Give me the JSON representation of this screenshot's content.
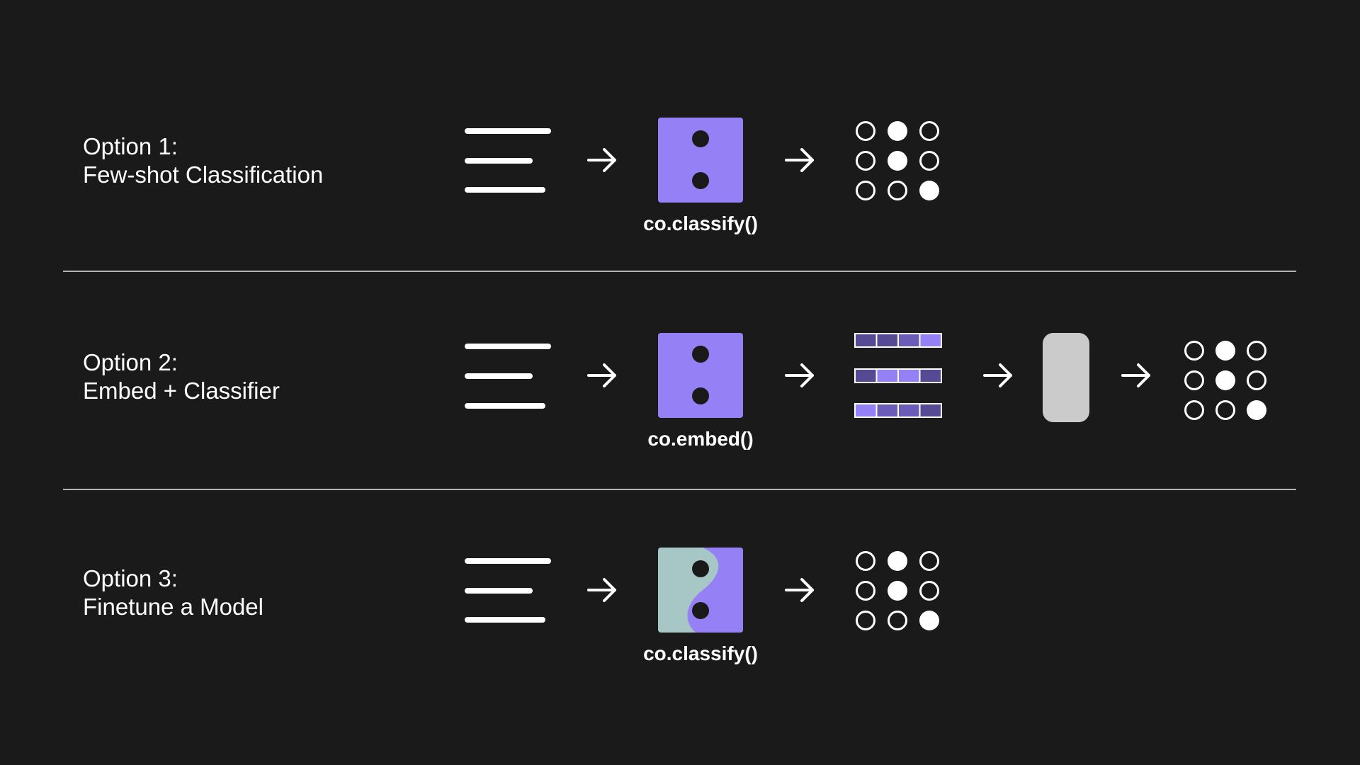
{
  "colors": {
    "background": "#1a1a1a",
    "foreground": "#ffffff",
    "model_purple": "#9580f5",
    "finetune_teal": "#a7c6c6",
    "embed_dark": "#574a94",
    "embed_mid": "#6b5cb8",
    "embed_light": "#9580f5",
    "classifier_gray": "#cbcbcb",
    "divider": "#e6e6e6"
  },
  "rows": [
    {
      "title_line1": "Option 1:",
      "title_line2": "Few-shot Classification",
      "function_label": "co.classify()",
      "model_style": "purple-model-icon"
    },
    {
      "title_line1": "Option 2:",
      "title_line2": "Embed + Classifier",
      "function_label": "co.embed()",
      "model_style": "purple-model-icon"
    },
    {
      "title_line1": "Option 3:",
      "title_line2": "Finetune a Model",
      "function_label": "co.classify()",
      "model_style": "finetuned-model-icon"
    }
  ],
  "output_grid_filled": [
    [
      false,
      true,
      false
    ],
    [
      false,
      true,
      false
    ],
    [
      false,
      false,
      true
    ]
  ],
  "embedding_rows": [
    [
      "dark",
      "dark",
      "mid",
      "light"
    ],
    [
      "dark",
      "light",
      "light",
      "dark"
    ],
    [
      "light",
      "mid",
      "mid",
      "dark"
    ]
  ]
}
